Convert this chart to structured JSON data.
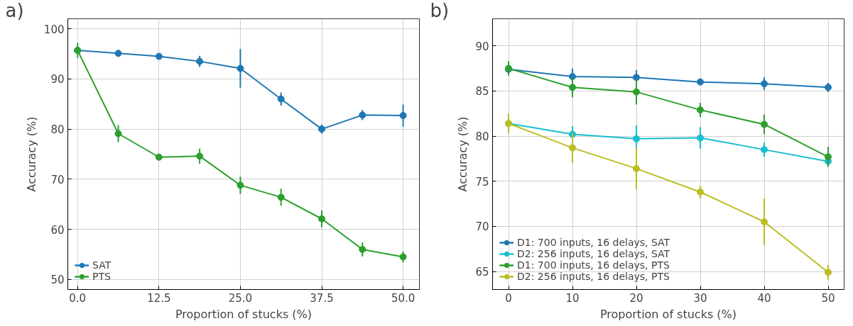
{
  "chart_data": [
    {
      "type": "line",
      "annotations": [
        "a)"
      ],
      "xlabel": "Proportion of stucks (%)",
      "ylabel": "Accuracy (%)",
      "x": [
        0,
        6.25,
        12.5,
        18.75,
        25,
        31.25,
        37.5,
        43.75,
        50
      ],
      "xlim": [
        -1.5,
        52.5
      ],
      "ylim": [
        48,
        102
      ],
      "xticks": [
        {
          "value": 0,
          "label": "0.0"
        },
        {
          "value": 12.5,
          "label": "12.5"
        },
        {
          "value": 25,
          "label": "25.0"
        },
        {
          "value": 37.5,
          "label": "37.5"
        },
        {
          "value": 50,
          "label": "50.0"
        }
      ],
      "yticks": [
        50,
        60,
        70,
        80,
        90,
        100
      ],
      "grid": true,
      "legend": "bottom left",
      "marker": "circle",
      "line_style": "solid",
      "series": [
        {
          "name": "SAT",
          "color": "#1f77b4",
          "values": [
            95.7,
            95.1,
            94.5,
            93.5,
            92.1,
            86.0,
            80.0,
            82.8,
            82.7
          ],
          "errors": [
            null,
            0.3,
            0.3,
            1.1,
            3.85,
            1.3,
            0.9,
            1.0,
            2.2
          ]
        },
        {
          "name": "PTS",
          "color": "#2ca02c",
          "values": [
            95.7,
            79.1,
            74.4,
            74.6,
            68.8,
            66.4,
            62.1,
            56.0,
            54.5
          ],
          "errors": [
            1.5,
            1.7,
            0.3,
            1.5,
            1.7,
            1.7,
            1.7,
            1.4,
            1.1
          ]
        }
      ]
    },
    {
      "type": "line",
      "annotations": [
        "b)"
      ],
      "xlabel": "Proportion of stucks (%)",
      "ylabel": "Accuracy (%)",
      "x": [
        0,
        10,
        20,
        30,
        40,
        50
      ],
      "xlim": [
        -2.5,
        52.5
      ],
      "ylim": [
        63,
        93
      ],
      "xticks": [
        0,
        10,
        20,
        30,
        40,
        50
      ],
      "yticks": [
        65,
        70,
        75,
        80,
        85,
        90
      ],
      "grid": true,
      "legend": "bottom left",
      "marker": "circle",
      "line_style": "solid",
      "series": [
        {
          "name": "D1: 700 inputs, 16 delays, SAT",
          "color": "#1f77b4",
          "values": [
            87.4,
            86.6,
            86.5,
            86.0,
            85.8,
            85.4
          ],
          "errors": [
            null,
            0.9,
            0.8,
            0.3,
            0.7,
            0.5
          ]
        },
        {
          "name": "D2: 256 inputs, 16 delays, SAT",
          "color": "#17becf",
          "values": [
            81.4,
            80.2,
            79.7,
            79.8,
            78.5,
            77.2
          ],
          "errors": [
            null,
            0.9,
            1.5,
            1.2,
            0.8,
            [
              76.6,
              77.4
            ]
          ]
        },
        {
          "name": "D1: 700 inputs, 16 delays, PTS",
          "color": "#2ca02c",
          "values": [
            87.5,
            85.4,
            84.9,
            82.9,
            81.3,
            77.7
          ],
          "errors": [
            0.8,
            1.1,
            1.4,
            0.8,
            1.1,
            1.1
          ]
        },
        {
          "name": "D2: 256 inputs, 16 delays, PTS",
          "color": "#bcbd22",
          "values": [
            81.4,
            78.7,
            76.4,
            73.8,
            70.5,
            64.9
          ],
          "errors": [
            1.1,
            1.7,
            2.3,
            0.7,
            2.6,
            0.8
          ]
        }
      ]
    }
  ]
}
